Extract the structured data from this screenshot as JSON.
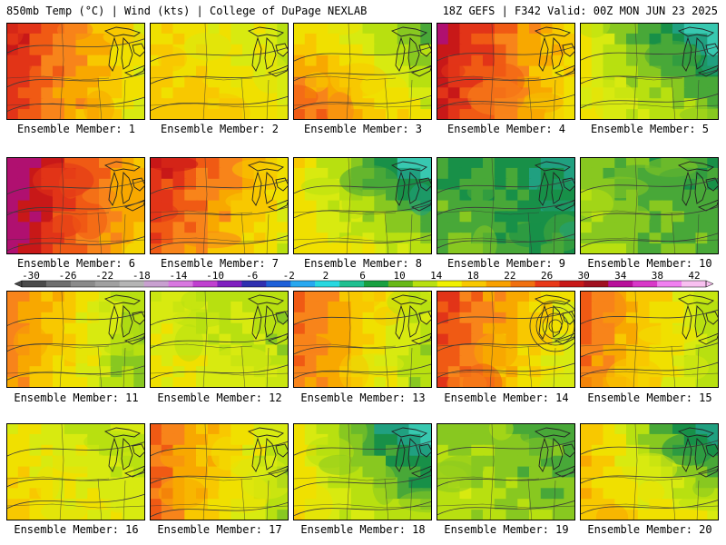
{
  "header": {
    "left": "850mb Temp (°C) | Wind (kts) | College of DuPage NEXLAB",
    "right": "18Z GEFS | F342 Valid: 00Z MON JUN 23 2025"
  },
  "label_prefix": "Ensemble Member: ",
  "colorbar": {
    "ticks": [
      "-30",
      "-26",
      "-22",
      "-18",
      "-14",
      "-10",
      "-6",
      "-2",
      "2",
      "6",
      "10",
      "14",
      "18",
      "22",
      "26",
      "30",
      "34",
      "38",
      "42"
    ],
    "colors": [
      "#4a4a4a",
      "#6e6e6e",
      "#8a8a8a",
      "#a0a0a0",
      "#b4b4b4",
      "#c8a0d0",
      "#d878e0",
      "#c040d0",
      "#8020c0",
      "#3030b0",
      "#1e60d8",
      "#28a8f0",
      "#28d8e0",
      "#20c090",
      "#18a040",
      "#68b818",
      "#b8e010",
      "#f0f000",
      "#f8c800",
      "#f8a000",
      "#f07010",
      "#e83818",
      "#c81818",
      "#a01020",
      "#b8109a",
      "#d838c8",
      "#f080f0",
      "#f8c0f0"
    ],
    "color_names": {
      "cold": "#4a4a4a",
      "cool": "#1e60d8",
      "mild": "#b8e010",
      "warm": "#f8a000",
      "hot": "#e83818",
      "extreme": "#c020a8"
    }
  },
  "members": [
    {
      "id": "1",
      "label": "Ensemble Member: 1",
      "warmth": 0.72,
      "profile": "west-hot"
    },
    {
      "id": "2",
      "label": "Ensemble Member: 2",
      "warmth": 0.55,
      "profile": "uniform"
    },
    {
      "id": "3",
      "label": "Ensemble Member: 3",
      "warmth": 0.55,
      "profile": "southwest-hot"
    },
    {
      "id": "4",
      "label": "Ensemble Member: 4",
      "warmth": 0.78,
      "profile": "west-hot"
    },
    {
      "id": "5",
      "label": "Ensemble Member: 5",
      "warmth": 0.38,
      "profile": "north-cool"
    },
    {
      "id": "6",
      "label": "Ensemble Member: 6",
      "warmth": 0.85,
      "profile": "west-hot"
    },
    {
      "id": "7",
      "label": "Ensemble Member: 7",
      "warmth": 0.7,
      "profile": "northwest-hot"
    },
    {
      "id": "8",
      "label": "Ensemble Member: 8",
      "warmth": 0.42,
      "profile": "north-cool"
    },
    {
      "id": "9",
      "label": "Ensemble Member: 9",
      "warmth": 0.22,
      "profile": "uniform"
    },
    {
      "id": "10",
      "label": "Ensemble Member: 10",
      "warmth": 0.3,
      "profile": "uniform"
    },
    {
      "id": "11",
      "label": "Ensemble Member: 11",
      "warmth": 0.55,
      "profile": "west-hot"
    },
    {
      "id": "12",
      "label": "Ensemble Member: 12",
      "warmth": 0.45,
      "profile": "uniform"
    },
    {
      "id": "13",
      "label": "Ensemble Member: 13",
      "warmth": 0.6,
      "profile": "west-hot"
    },
    {
      "id": "14",
      "label": "Ensemble Member: 14",
      "warmth": 0.68,
      "profile": "west-hot"
    },
    {
      "id": "15",
      "label": "Ensemble Member: 15",
      "warmth": 0.6,
      "profile": "west-hot"
    },
    {
      "id": "16",
      "label": "Ensemble Member: 16",
      "warmth": 0.5,
      "profile": "uniform"
    },
    {
      "id": "17",
      "label": "Ensemble Member: 17",
      "warmth": 0.6,
      "profile": "west-hot"
    },
    {
      "id": "18",
      "label": "Ensemble Member: 18",
      "warmth": 0.4,
      "profile": "north-cool"
    },
    {
      "id": "19",
      "label": "Ensemble Member: 19",
      "warmth": 0.35,
      "profile": "uniform"
    },
    {
      "id": "20",
      "label": "Ensemble Member: 20",
      "warmth": 0.5,
      "profile": "north-cool"
    }
  ]
}
